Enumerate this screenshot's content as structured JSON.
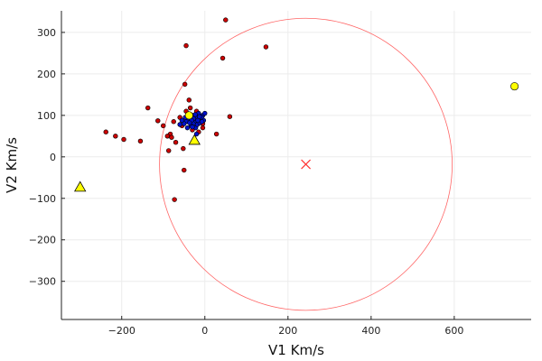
{
  "chart_data": {
    "type": "scatter",
    "title": "",
    "xlabel": "V1 Km/s",
    "ylabel": "V2 Km/s",
    "xlim": [
      -345,
      785
    ],
    "ylim": [
      -392,
      352
    ],
    "xticks": [
      -200,
      0,
      200,
      400,
      600
    ],
    "yticks": [
      -300,
      -200,
      -100,
      0,
      100,
      200,
      300
    ],
    "grid": true,
    "legend": "none",
    "colors": {
      "red": "#cc0000",
      "blue": "#0011cc",
      "yellow": "#ffff00",
      "circle": "#ff6666",
      "cross": "#ff3333",
      "axis": "#222222",
      "grid": "#ececec"
    },
    "series": [
      {
        "marker": "circle",
        "color": "red",
        "points": [
          [
            50,
            330
          ],
          [
            -45,
            268
          ],
          [
            147,
            265
          ],
          [
            43,
            238
          ],
          [
            -48,
            175
          ],
          [
            -38,
            137
          ],
          [
            -35,
            118
          ],
          [
            -137,
            118
          ],
          [
            -113,
            87
          ],
          [
            60,
            97
          ],
          [
            -100,
            75
          ],
          [
            -75,
            85
          ],
          [
            -83,
            55
          ],
          [
            -90,
            50
          ],
          [
            -80,
            47
          ],
          [
            -70,
            35
          ],
          [
            -238,
            60
          ],
          [
            -215,
            50
          ],
          [
            -195,
            42
          ],
          [
            -155,
            38
          ],
          [
            -52,
            20
          ],
          [
            -87,
            15
          ],
          [
            28,
            55
          ],
          [
            -50,
            -32
          ],
          [
            -73,
            -103
          ],
          [
            -55,
            75
          ],
          [
            -30,
            65
          ],
          [
            -5,
            70
          ],
          [
            -20,
            110
          ],
          [
            -60,
            95
          ],
          [
            -45,
            110
          ],
          [
            -5,
            80
          ],
          [
            -15,
            60
          ]
        ]
      },
      {
        "marker": "circle",
        "color": "blue",
        "points": [
          [
            -40,
            90
          ],
          [
            -35,
            95
          ],
          [
            -30,
            100
          ],
          [
            -25,
            85
          ],
          [
            -20,
            95
          ],
          [
            -15,
            105
          ],
          [
            -10,
            90
          ],
          [
            -5,
            100
          ],
          [
            0,
            105
          ],
          [
            -28,
            80
          ],
          [
            -33,
            75
          ],
          [
            -22,
            70
          ],
          [
            -18,
            78
          ],
          [
            -45,
            85
          ],
          [
            -50,
            80
          ],
          [
            -38,
            100
          ],
          [
            -12,
            82
          ],
          [
            -8,
            95
          ],
          [
            -42,
            70
          ],
          [
            -27,
            92
          ],
          [
            -17,
            88
          ],
          [
            -32,
            88
          ],
          [
            -23,
            102
          ],
          [
            -13,
            97
          ],
          [
            -3,
            88
          ],
          [
            -37,
            82
          ],
          [
            -55,
            88
          ],
          [
            -20,
            55
          ],
          [
            -60,
            78
          ],
          [
            -47,
            95
          ],
          [
            -7,
            85
          ],
          [
            -30,
            72
          ]
        ]
      },
      {
        "marker": "circle",
        "color": "yellow",
        "points": [
          [
            -38,
            100
          ],
          [
            745,
            170
          ]
        ]
      },
      {
        "marker": "triangle",
        "color": "yellow",
        "points": [
          [
            -300,
            -73
          ],
          [
            -25,
            40
          ]
        ]
      }
    ],
    "circle": {
      "center": [
        243,
        -18
      ],
      "radius": 352
    },
    "cross": [
      243,
      -18
    ]
  }
}
